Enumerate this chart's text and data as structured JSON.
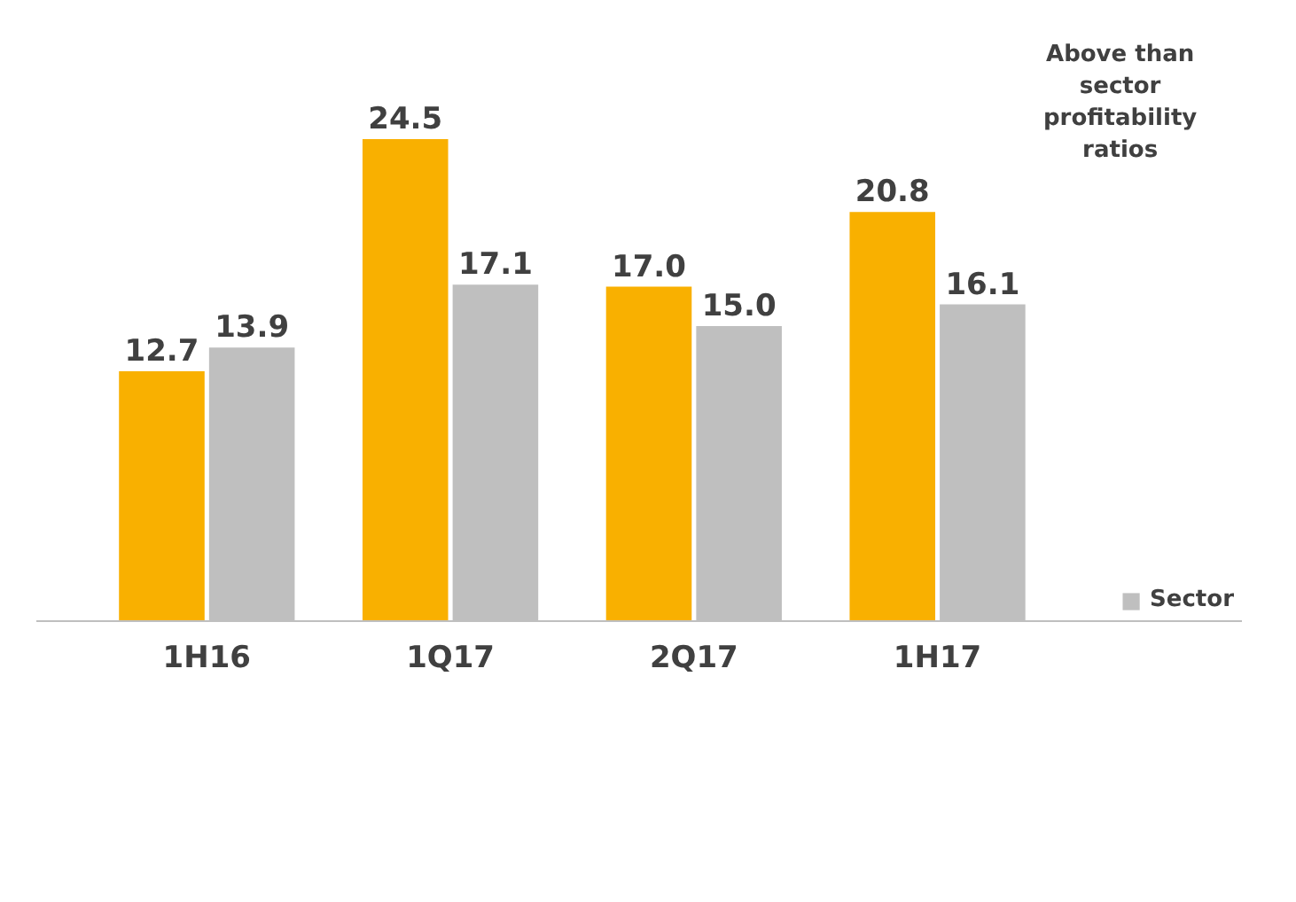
{
  "chart_data": {
    "type": "bar",
    "categories": [
      "1H16",
      "1Q17",
      "2Q17",
      "1H17"
    ],
    "series": [
      {
        "color": "#f9b000",
        "values": [
          12.7,
          24.5,
          17.0,
          20.8
        ],
        "value_labels": [
          "12.7",
          "24.5",
          "17.0",
          "20.8"
        ]
      },
      {
        "name": "Sector",
        "color": "#bfbfbf",
        "values": [
          13.9,
          17.1,
          15.0,
          16.1
        ],
        "value_labels": [
          "13.9",
          "17.1",
          "15.0",
          "16.1"
        ]
      }
    ],
    "legend": "bottom right",
    "annotations": [
      "Above than sector profitability ratios"
    ]
  }
}
